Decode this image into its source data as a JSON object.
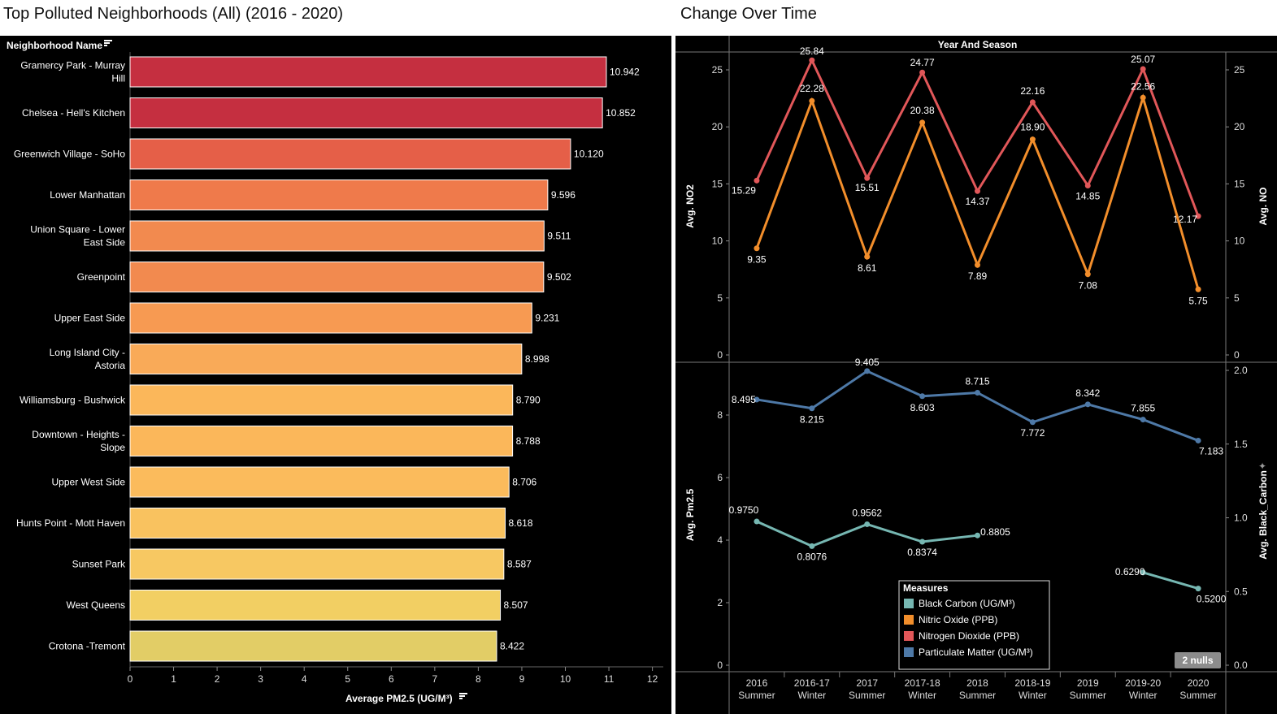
{
  "titles": {
    "left": "Top Polluted Neighborhoods (All) (2016 - 2020)",
    "right": "Change Over Time"
  },
  "chart_data": [
    {
      "type": "bar",
      "orientation": "horizontal",
      "row_header": "Neighborhood Name",
      "xlabel": "Average PM2.5 (UG/M³)",
      "xlim": [
        0,
        12
      ],
      "xticks": [
        "0",
        "1",
        "2",
        "3",
        "4",
        "5",
        "6",
        "7",
        "8",
        "9",
        "10",
        "11",
        "12"
      ],
      "categories": [
        "Gramercy Park - Murray Hill",
        "Chelsea - Hell's Kitchen",
        "Greenwich Village - SoHo",
        "Lower Manhattan",
        "Union Square - Lower East Side",
        "Greenpoint",
        "Upper East Side",
        "Long Island City - Astoria",
        "Williamsburg - Bushwick",
        "Downtown - Heights - Slope",
        "Upper West Side",
        "Hunts Point - Mott Haven",
        "Sunset Park",
        "West Queens",
        "Crotona -Tremont"
      ],
      "values": [
        10.942,
        10.852,
        10.12,
        9.596,
        9.511,
        9.502,
        9.231,
        8.998,
        8.79,
        8.788,
        8.706,
        8.618,
        8.587,
        8.507,
        8.422
      ],
      "value_labels": [
        "10.942",
        "10.852",
        "10.120",
        "9.596",
        "9.511",
        "9.502",
        "9.231",
        "8.998",
        "8.790",
        "8.788",
        "8.706",
        "8.618",
        "8.587",
        "8.507",
        "8.422"
      ],
      "bar_colors": [
        "#c52f40",
        "#c52f40",
        "#e55f48",
        "#ef7a4b",
        "#f28a4f",
        "#f28a4f",
        "#f79a52",
        "#f9aa58",
        "#fbb75a",
        "#fbb75a",
        "#fbbb5c",
        "#f9c25f",
        "#f7c862",
        "#f2cf63",
        "#e2cd66"
      ]
    },
    {
      "type": "line",
      "column_header": "Year And Season",
      "x": [
        "2016 Summer",
        "2016-17 Winter",
        "2017 Summer",
        "2017-18 Winter",
        "2018 Summer",
        "2018-19 Winter",
        "2019 Summer",
        "2019-20 Winter",
        "2020 Summer"
      ],
      "x_years": [
        "2016",
        "2016-17",
        "2017",
        "2017-18",
        "2018",
        "2018-19",
        "2019",
        "2019-20",
        "2020"
      ],
      "x_seasons": [
        "Summer",
        "Winter",
        "Summer",
        "Winter",
        "Summer",
        "Winter",
        "Summer",
        "Winter",
        "Summer"
      ],
      "panels": [
        {
          "ylabel_left": "Avg. NO2",
          "ylabel_right": "Avg. NO",
          "ylim": [
            0,
            27
          ],
          "yticks": [
            "0",
            "5",
            "10",
            "15",
            "20",
            "25"
          ],
          "series": [
            {
              "name": "Nitrogen Dioxide (PPB)",
              "color": "#e15759",
              "values": [
                15.29,
                25.84,
                15.51,
                24.77,
                14.37,
                22.16,
                14.85,
                25.07,
                12.17
              ],
              "labels": [
                "15.29",
                "25.84",
                "15.51",
                "24.77",
                "14.37",
                "22.16",
                "14.85",
                "25.07",
                "12.17"
              ]
            },
            {
              "name": "Nitric Oxide (PPB)",
              "color": "#f28e2b",
              "values": [
                9.35,
                22.28,
                8.61,
                20.38,
                7.89,
                18.9,
                7.08,
                22.56,
                5.75
              ],
              "labels": [
                "9.35",
                "22.28",
                "8.61",
                "20.38",
                "7.89",
                "18.90",
                "7.08",
                "22.56",
                "5.75"
              ]
            }
          ]
        },
        {
          "ylabel_left": "Avg. Pm2.5",
          "ylabel_right": "Avg. Black_Carbon",
          "ylim_left": [
            0,
            9.9
          ],
          "yticks_left": [
            "0",
            "2",
            "4",
            "6",
            "8"
          ],
          "ylim_right": [
            0,
            2.0
          ],
          "yticks_right": [
            "0.0",
            "0.5",
            "1.0",
            "1.5",
            "2.0"
          ],
          "series": [
            {
              "name": "Particulate Matter (UG/M³)",
              "color": "#4e79a7",
              "axis": "left",
              "values": [
                8.495,
                8.215,
                9.405,
                8.603,
                8.715,
                7.772,
                8.342,
                7.855,
                7.183
              ],
              "labels": [
                "8.495",
                "8.215",
                "9.405",
                "8.603",
                "8.715",
                "7.772",
                "8.342",
                "7.855",
                "7.183"
              ]
            },
            {
              "name": "Black Carbon (UG/M³)",
              "color": "#76b7b2",
              "axis": "right",
              "values": [
                0.975,
                0.8076,
                0.9562,
                0.8374,
                0.8805,
                null,
                null,
                0.629,
                0.52
              ],
              "labels": [
                "0.9750",
                "0.8076",
                "0.9562",
                "0.8374",
                "0.8805",
                null,
                null,
                "0.6290",
                "0.5200"
              ]
            }
          ]
        }
      ],
      "legend": {
        "title": "Measures",
        "placement": "bottom-center",
        "items": [
          {
            "label": "Black Carbon (UG/M³)",
            "color": "#76b7b2"
          },
          {
            "label": "Nitric Oxide (PPB)",
            "color": "#f28e2b"
          },
          {
            "label": "Nitrogen Dioxide (PPB)",
            "color": "#e15759"
          },
          {
            "label": "Particulate Matter (UG/M³)",
            "color": "#4e79a7"
          }
        ]
      },
      "nulls_badge": "2 nulls"
    }
  ]
}
